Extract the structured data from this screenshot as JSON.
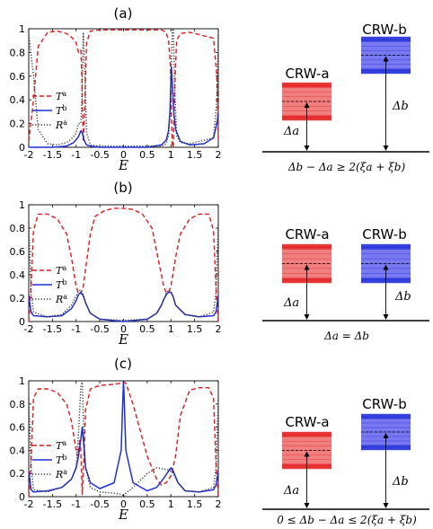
{
  "colors": {
    "Ta": "#e31a1c",
    "Tb": "#1f2fd6",
    "Ra": "#333333",
    "crw_a": "#f08080",
    "crw_b": "#7878f0"
  },
  "panels": [
    {
      "title": "(a)",
      "condition": "Δb − Δa ≥ 2(ξa + ξb)",
      "crw_a": {
        "label": "CRW-a",
        "delta": "Δa"
      },
      "crw_b": {
        "label": "CRW-b",
        "delta": "Δb"
      },
      "chart_data": {
        "type": "line",
        "xlabel": "E",
        "xlim": [
          -2,
          2
        ],
        "ylim": [
          0,
          1
        ],
        "xticks": [
          -2,
          -1.5,
          -1,
          -0.5,
          0,
          0.5,
          1,
          1.5,
          2
        ],
        "yticks": [
          0,
          0.2,
          0.4,
          0.6,
          0.8,
          1
        ],
        "series": [
          {
            "name": "Ta",
            "style": "dashed",
            "color": "#e31a1c",
            "x": [
              -2,
              -1.9,
              -1.8,
              -1.6,
              -1.4,
              -1.2,
              -1.1,
              -1.0,
              -0.95,
              -0.9,
              -0.88,
              -0.85,
              -0.82,
              -0.78,
              -0.7,
              -0.5,
              0,
              0.5,
              0.8,
              0.9,
              0.95,
              0.99,
              1.01,
              1.03,
              1.05,
              1.08,
              1.12,
              1.2,
              1.4,
              1.6,
              1.8,
              1.9,
              1.97,
              2
            ],
            "y": [
              0.05,
              0.4,
              0.85,
              0.97,
              0.98,
              0.96,
              0.93,
              0.88,
              0.8,
              0.82,
              0.6,
              0.05,
              0.3,
              0.88,
              0.98,
              0.99,
              0.99,
              0.99,
              0.99,
              0.97,
              0.9,
              0.7,
              0.3,
              0.02,
              0.0,
              0.5,
              0.9,
              0.96,
              0.97,
              0.95,
              0.93,
              0.92,
              0.6,
              0.05
            ]
          },
          {
            "name": "Tb",
            "style": "solid",
            "color": "#1f2fd6",
            "x": [
              -2,
              -1.5,
              -1.2,
              -1.05,
              -0.95,
              -0.9,
              -0.87,
              -0.83,
              -0.78,
              -0.7,
              -0.5,
              0,
              0.5,
              0.8,
              0.9,
              0.95,
              0.98,
              1.01,
              1.03,
              1.06,
              1.1,
              1.2,
              1.4,
              1.7,
              1.9,
              1.97,
              2
            ],
            "y": [
              0.0,
              0.0,
              0.01,
              0.04,
              0.09,
              0.14,
              0.12,
              0.06,
              0.02,
              0.01,
              0.0,
              0.0,
              0.0,
              0.02,
              0.06,
              0.14,
              0.3,
              0.68,
              0.55,
              0.3,
              0.15,
              0.05,
              0.02,
              0.03,
              0.08,
              0.2,
              0.28
            ]
          },
          {
            "name": "Ra",
            "style": "dotted",
            "color": "#333333",
            "x": [
              -2,
              -1.9,
              -1.8,
              -1.6,
              -1.4,
              -1.2,
              -1.1,
              -1.0,
              -0.95,
              -0.9,
              -0.88,
              -0.85,
              -0.82,
              -0.78,
              -0.7,
              -0.5,
              0,
              0.5,
              0.8,
              0.9,
              0.95,
              0.99,
              1.01,
              1.03,
              1.05,
              1.08,
              1.12,
              1.2,
              1.4,
              1.6,
              1.8,
              1.9,
              1.97,
              2
            ],
            "y": [
              0.95,
              0.6,
              0.15,
              0.03,
              0.02,
              0.04,
              0.07,
              0.12,
              0.2,
              0.2,
              0.4,
              0.97,
              0.7,
              0.12,
              0.02,
              0.01,
              0.01,
              0.01,
              0.01,
              0.03,
              0.1,
              0.3,
              0.7,
              0.98,
              1.0,
              0.5,
              0.1,
              0.04,
              0.03,
              0.05,
              0.07,
              0.08,
              0.4,
              0.95
            ]
          }
        ]
      }
    },
    {
      "title": "(b)",
      "condition": "Δa = Δb",
      "crw_a": {
        "label": "CRW-a",
        "delta": "Δa"
      },
      "crw_b": {
        "label": "CRW-b",
        "delta": "Δb"
      },
      "chart_data": {
        "type": "line",
        "xlabel": "E",
        "xlim": [
          -2,
          2
        ],
        "ylim": [
          0,
          1
        ],
        "xticks": [
          -2,
          -1.5,
          -1,
          -0.5,
          0,
          0.5,
          1,
          1.5,
          2
        ],
        "yticks": [
          0,
          0.2,
          0.4,
          0.6,
          0.8,
          1
        ],
        "series": [
          {
            "name": "Ta",
            "style": "dashed",
            "color": "#e31a1c",
            "x": [
              -2,
              -1.95,
              -1.9,
              -1.8,
              -1.6,
              -1.4,
              -1.2,
              -1.1,
              -1.0,
              -0.95,
              -0.9,
              -0.85,
              -0.8,
              -0.7,
              -0.6,
              -0.4,
              -0.2,
              0,
              0.2,
              0.4,
              0.6,
              0.7,
              0.8,
              0.85,
              0.9,
              0.95,
              1.0,
              1.1,
              1.2,
              1.4,
              1.6,
              1.8,
              1.9,
              1.95,
              2
            ],
            "y": [
              0.0,
              0.3,
              0.78,
              0.92,
              0.92,
              0.88,
              0.75,
              0.55,
              0.3,
              0.24,
              0.24,
              0.3,
              0.45,
              0.75,
              0.9,
              0.95,
              0.97,
              0.97,
              0.96,
              0.92,
              0.8,
              0.6,
              0.4,
              0.3,
              0.25,
              0.25,
              0.3,
              0.55,
              0.75,
              0.88,
              0.92,
              0.92,
              0.78,
              0.3,
              0.0
            ]
          },
          {
            "name": "Tb",
            "style": "solid",
            "color": "#1f2fd6",
            "x": [
              -2,
              -1.95,
              -1.9,
              -1.6,
              -1.3,
              -1.1,
              -1.0,
              -0.95,
              -0.9,
              -0.85,
              -0.8,
              -0.7,
              -0.5,
              0,
              0.5,
              0.7,
              0.8,
              0.85,
              0.9,
              0.95,
              1.0,
              1.05,
              1.1,
              1.3,
              1.6,
              1.9,
              1.95,
              2
            ],
            "y": [
              0.22,
              0.08,
              0.05,
              0.04,
              0.05,
              0.11,
              0.18,
              0.23,
              0.25,
              0.22,
              0.16,
              0.07,
              0.02,
              0.0,
              0.02,
              0.07,
              0.14,
              0.19,
              0.23,
              0.25,
              0.25,
              0.21,
              0.14,
              0.06,
              0.04,
              0.05,
              0.08,
              0.22
            ]
          },
          {
            "name": "Ra",
            "style": "dotted",
            "color": "#333333",
            "x": [
              -2,
              -1.95,
              -1.9,
              -1.6,
              -1.3,
              -1.1,
              -1.0,
              -0.95,
              -0.9,
              -0.85,
              -0.8,
              -0.7,
              -0.5,
              0,
              0.5,
              0.7,
              0.8,
              0.85,
              0.9,
              0.95,
              1.0,
              1.05,
              1.1,
              1.3,
              1.6,
              1.9,
              1.95,
              2
            ],
            "y": [
              0.85,
              0.25,
              0.08,
              0.04,
              0.06,
              0.14,
              0.22,
              0.26,
              0.27,
              0.23,
              0.16,
              0.07,
              0.02,
              0.01,
              0.02,
              0.07,
              0.14,
              0.19,
              0.24,
              0.27,
              0.26,
              0.21,
              0.14,
              0.06,
              0.04,
              0.08,
              0.25,
              0.85
            ]
          }
        ]
      }
    },
    {
      "title": "(c)",
      "condition": "0 ≤ Δb − Δa ≤ 2(ξa + ξb)",
      "crw_a": {
        "label": "CRW-a",
        "delta": "Δa"
      },
      "crw_b": {
        "label": "CRW-b",
        "delta": "Δb"
      },
      "chart_data": {
        "type": "line",
        "xlabel": "E",
        "xlim": [
          -2,
          2
        ],
        "ylim": [
          0,
          1
        ],
        "xticks": [
          -2,
          -1.5,
          -1,
          -0.5,
          0,
          0.5,
          1,
          1.5,
          2
        ],
        "yticks": [
          0,
          0.2,
          0.4,
          0.6,
          0.8,
          1
        ],
        "series": [
          {
            "name": "Ta",
            "style": "dashed",
            "color": "#e31a1c",
            "x": [
              -2,
              -1.95,
              -1.9,
              -1.8,
              -1.6,
              -1.4,
              -1.2,
              -1.1,
              -1.0,
              -0.97,
              -0.92,
              -0.9,
              -0.87,
              -0.84,
              -0.8,
              -0.7,
              -0.5,
              -0.2,
              -0.05,
              0,
              0.05,
              0.2,
              0.5,
              0.7,
              0.8,
              0.9,
              1.0,
              1.1,
              1.2,
              1.4,
              1.6,
              1.8,
              1.9,
              1.95,
              2
            ],
            "y": [
              0.0,
              0.3,
              0.85,
              0.93,
              0.93,
              0.9,
              0.8,
              0.65,
              0.4,
              0.35,
              0.5,
              0.4,
              0.02,
              0.3,
              0.75,
              0.93,
              0.96,
              0.97,
              0.98,
              0.99,
              0.98,
              0.8,
              0.35,
              0.15,
              0.1,
              0.12,
              0.18,
              0.35,
              0.7,
              0.92,
              0.94,
              0.94,
              0.85,
              0.3,
              0.0
            ]
          },
          {
            "name": "Tb",
            "style": "solid",
            "color": "#1f2fd6",
            "x": [
              -2,
              -1.95,
              -1.9,
              -1.6,
              -1.3,
              -1.1,
              -1.0,
              -0.95,
              -0.9,
              -0.87,
              -0.84,
              -0.8,
              -0.7,
              -0.5,
              -0.2,
              -0.05,
              -0.01,
              0,
              0.01,
              0.05,
              0.2,
              0.5,
              0.7,
              0.85,
              0.95,
              1.0,
              1.05,
              1.15,
              1.3,
              1.6,
              1.9,
              1.95,
              2
            ],
            "y": [
              0.22,
              0.06,
              0.04,
              0.05,
              0.08,
              0.15,
              0.25,
              0.35,
              0.5,
              0.6,
              0.45,
              0.25,
              0.12,
              0.07,
              0.12,
              0.4,
              0.9,
              0.99,
              0.9,
              0.4,
              0.12,
              0.05,
              0.08,
              0.16,
              0.22,
              0.25,
              0.22,
              0.12,
              0.05,
              0.04,
              0.06,
              0.1,
              0.22
            ]
          },
          {
            "name": "Ra",
            "style": "dotted",
            "color": "#333333",
            "x": [
              -2,
              -1.95,
              -1.9,
              -1.6,
              -1.3,
              -1.1,
              -1.0,
              -0.95,
              -0.9,
              -0.87,
              -0.84,
              -0.8,
              -0.7,
              -0.5,
              -0.2,
              -0.05,
              -0.01,
              0,
              0.01,
              0.05,
              0.2,
              0.5,
              0.7,
              0.85,
              0.95,
              1.0,
              1.05,
              1.15,
              1.3,
              1.6,
              1.9,
              1.95,
              2
            ],
            "y": [
              0.85,
              0.25,
              0.06,
              0.04,
              0.08,
              0.15,
              0.25,
              0.55,
              0.95,
              1.0,
              0.55,
              0.25,
              0.08,
              0.04,
              0.03,
              0.02,
              0.01,
              0.0,
              0.01,
              0.03,
              0.08,
              0.2,
              0.25,
              0.24,
              0.23,
              0.22,
              0.2,
              0.12,
              0.05,
              0.04,
              0.08,
              0.25,
              0.85
            ]
          }
        ]
      }
    }
  ]
}
